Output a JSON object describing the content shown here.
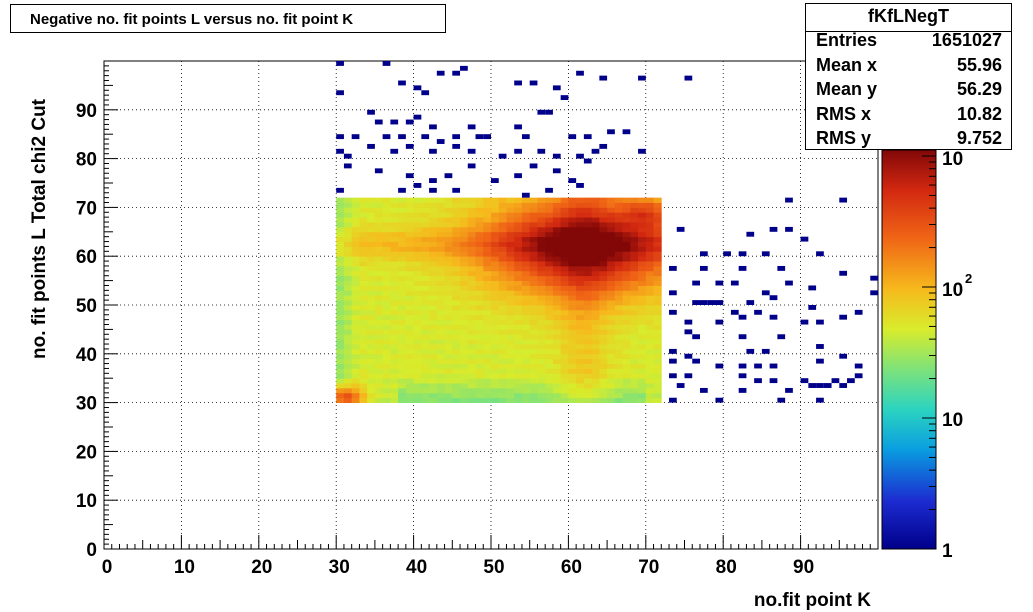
{
  "chart_data": {
    "type": "heatmap",
    "title": "Negative no. fit points L versus no. fit point K",
    "xlabel": "no.fit point K",
    "ylabel": "no. fit points  L   Total chi2 Cut",
    "xlim": [
      0,
      100
    ],
    "ylim": [
      0,
      100
    ],
    "x_ticks": [
      "0",
      "10",
      "20",
      "30",
      "40",
      "50",
      "60",
      "70",
      "80",
      "90"
    ],
    "y_ticks": [
      "0",
      "10",
      "20",
      "30",
      "40",
      "50",
      "60",
      "70",
      "80",
      "90"
    ],
    "grid": true,
    "colorbar": {
      "scale": "log",
      "labels": [
        {
          "text": "1",
          "exp": ""
        },
        {
          "text": "10",
          "exp": ""
        },
        {
          "text": "10",
          "exp": "2"
        },
        {
          "text": "10",
          "exp": ""
        }
      ]
    },
    "dense_region": {
      "x": [
        30,
        72
      ],
      "y": [
        30,
        72
      ],
      "peak": [
        62,
        62
      ]
    },
    "sparse_points": [
      [
        30,
        99
      ],
      [
        36,
        99
      ],
      [
        43,
        97
      ],
      [
        45,
        97
      ],
      [
        46,
        98
      ],
      [
        38,
        95
      ],
      [
        40,
        94
      ],
      [
        41,
        93
      ],
      [
        53,
        95
      ],
      [
        55,
        95
      ],
      [
        58,
        94
      ],
      [
        59,
        92
      ],
      [
        61,
        97
      ],
      [
        64,
        96
      ],
      [
        69,
        96
      ],
      [
        75,
        96
      ],
      [
        30,
        93
      ],
      [
        34,
        89
      ],
      [
        35,
        87
      ],
      [
        37,
        87
      ],
      [
        39,
        87
      ],
      [
        40,
        88
      ],
      [
        42,
        86
      ],
      [
        47,
        86
      ],
      [
        48,
        84
      ],
      [
        30,
        84
      ],
      [
        32,
        84
      ],
      [
        36,
        84
      ],
      [
        38,
        84
      ],
      [
        41,
        84
      ],
      [
        43,
        83
      ],
      [
        45,
        84
      ],
      [
        49,
        84
      ],
      [
        53,
        86
      ],
      [
        54,
        84
      ],
      [
        56,
        89
      ],
      [
        57,
        89
      ],
      [
        60,
        84
      ],
      [
        62,
        84
      ],
      [
        65,
        85
      ],
      [
        67,
        85
      ],
      [
        64,
        82
      ],
      [
        30,
        81
      ],
      [
        31,
        80
      ],
      [
        34,
        82
      ],
      [
        37,
        81
      ],
      [
        39,
        82
      ],
      [
        42,
        81
      ],
      [
        45,
        82
      ],
      [
        47,
        81
      ],
      [
        51,
        80
      ],
      [
        53,
        81
      ],
      [
        56,
        81
      ],
      [
        58,
        80
      ],
      [
        61,
        80
      ],
      [
        63,
        81
      ],
      [
        69,
        81
      ],
      [
        31,
        78
      ],
      [
        35,
        77
      ],
      [
        39,
        76
      ],
      [
        42,
        75
      ],
      [
        44,
        76
      ],
      [
        47,
        78
      ],
      [
        50,
        75
      ],
      [
        53,
        76
      ],
      [
        55,
        78
      ],
      [
        58,
        77
      ],
      [
        60,
        75
      ],
      [
        62,
        79
      ],
      [
        30,
        73
      ],
      [
        38,
        73
      ],
      [
        40,
        74
      ],
      [
        42,
        73
      ],
      [
        45,
        73
      ],
      [
        54,
        72
      ],
      [
        57,
        73
      ],
      [
        61,
        74
      ],
      [
        88,
        71
      ],
      [
        95,
        71
      ],
      [
        74,
        65
      ],
      [
        83,
        64
      ],
      [
        86,
        65
      ],
      [
        88,
        65
      ],
      [
        90,
        63
      ],
      [
        77,
        60
      ],
      [
        80,
        60
      ],
      [
        82,
        60
      ],
      [
        85,
        60
      ],
      [
        92,
        60
      ],
      [
        73,
        57
      ],
      [
        77,
        57
      ],
      [
        82,
        57
      ],
      [
        87,
        57
      ],
      [
        95,
        56
      ],
      [
        99,
        55
      ],
      [
        76,
        54
      ],
      [
        79,
        54
      ],
      [
        81,
        54
      ],
      [
        85,
        52
      ],
      [
        88,
        54
      ],
      [
        91,
        53
      ],
      [
        99,
        52
      ],
      [
        73,
        52
      ],
      [
        76,
        50
      ],
      [
        77,
        50
      ],
      [
        78,
        50
      ],
      [
        79,
        50
      ],
      [
        83,
        50
      ],
      [
        86,
        51
      ],
      [
        91,
        49
      ],
      [
        73,
        48
      ],
      [
        81,
        48
      ],
      [
        95,
        47
      ],
      [
        97,
        48
      ],
      [
        75,
        46
      ],
      [
        79,
        46
      ],
      [
        82,
        47
      ],
      [
        84,
        48
      ],
      [
        86,
        47
      ],
      [
        90,
        46
      ],
      [
        92,
        46
      ],
      [
        75,
        44
      ],
      [
        76,
        43
      ],
      [
        82,
        43
      ],
      [
        87,
        43
      ],
      [
        92,
        41
      ],
      [
        73,
        40
      ],
      [
        75,
        39
      ],
      [
        83,
        40
      ],
      [
        85,
        40
      ],
      [
        73,
        38
      ],
      [
        76,
        38
      ],
      [
        79,
        37
      ],
      [
        82,
        37
      ],
      [
        84,
        37
      ],
      [
        86,
        37
      ],
      [
        92,
        38
      ],
      [
        95,
        39
      ],
      [
        97,
        37
      ],
      [
        73,
        35
      ],
      [
        75,
        35
      ],
      [
        82,
        35
      ],
      [
        84,
        34
      ],
      [
        86,
        34
      ],
      [
        90,
        34
      ],
      [
        92,
        33
      ],
      [
        94,
        34
      ],
      [
        96,
        34
      ],
      [
        74,
        33
      ],
      [
        77,
        32
      ],
      [
        82,
        32
      ],
      [
        88,
        32
      ],
      [
        91,
        33
      ],
      [
        93,
        33
      ],
      [
        95,
        33
      ],
      [
        97,
        35
      ],
      [
        73,
        30
      ],
      [
        79,
        30
      ],
      [
        87,
        30
      ],
      [
        92,
        30
      ]
    ]
  },
  "stats": {
    "name": "fKfLNegT",
    "rows": [
      {
        "label": "Entries",
        "value": "1651027"
      },
      {
        "label": "Mean x",
        "value": "55.96"
      },
      {
        "label": "Mean y",
        "value": "56.29"
      },
      {
        "label": "RMS x",
        "value": "10.82"
      },
      {
        "label": "RMS y",
        "value": "9.752"
      }
    ]
  }
}
